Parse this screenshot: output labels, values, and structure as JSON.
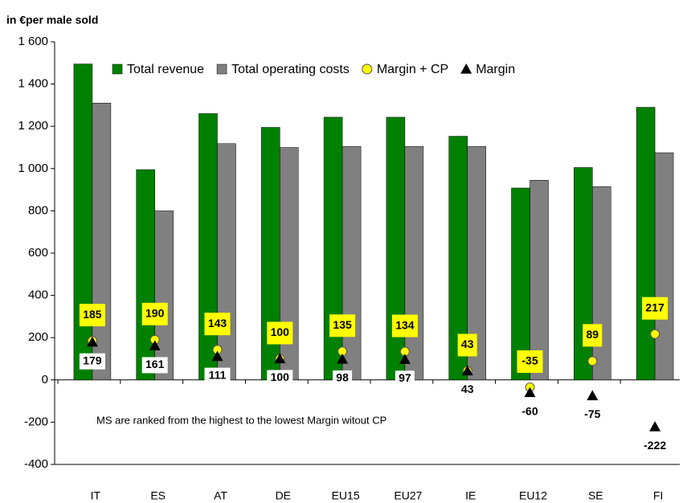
{
  "chart_data": {
    "type": "bar",
    "y_label": "in €per male sold",
    "annotation": "MS are ranked from the highest to the lowest Margin witout CP",
    "categories": [
      "IT",
      "ES",
      "AT",
      "DE",
      "EU15",
      "EU27",
      "IE",
      "EU12",
      "SE",
      "FI"
    ],
    "series": [
      {
        "name": "Total revenue",
        "type": "bar",
        "color": "#008000",
        "values": [
          1495,
          995,
          1260,
          1195,
          1243,
          1243,
          1153,
          908,
          1005,
          1290
        ]
      },
      {
        "name": "Total operating costs",
        "type": "bar",
        "color": "#808080",
        "values": [
          1310,
          800,
          1118,
          1100,
          1105,
          1105,
          1105,
          945,
          915,
          1075
        ]
      },
      {
        "name": "Margin + CP",
        "type": "scatter",
        "marker": "circle",
        "color": "#ffff00",
        "values": [
          185,
          190,
          143,
          100,
          135,
          134,
          43,
          -35,
          89,
          217
        ]
      },
      {
        "name": "Margin",
        "type": "scatter",
        "marker": "triangle",
        "color": "#000000",
        "values": [
          179,
          161,
          111,
          100,
          98,
          97,
          43,
          -60,
          -75,
          -222
        ]
      }
    ],
    "ylim": [
      -400,
      1600
    ],
    "yticks": [
      -400,
      -200,
      0,
      200,
      400,
      600,
      800,
      {
        "value": 1000,
        "label": "1 000"
      },
      {
        "value": 1200,
        "label": "1 200"
      },
      {
        "value": 1400,
        "label": "1 400"
      },
      {
        "value": 1600,
        "label": "1 600"
      }
    ],
    "legend": "top"
  }
}
